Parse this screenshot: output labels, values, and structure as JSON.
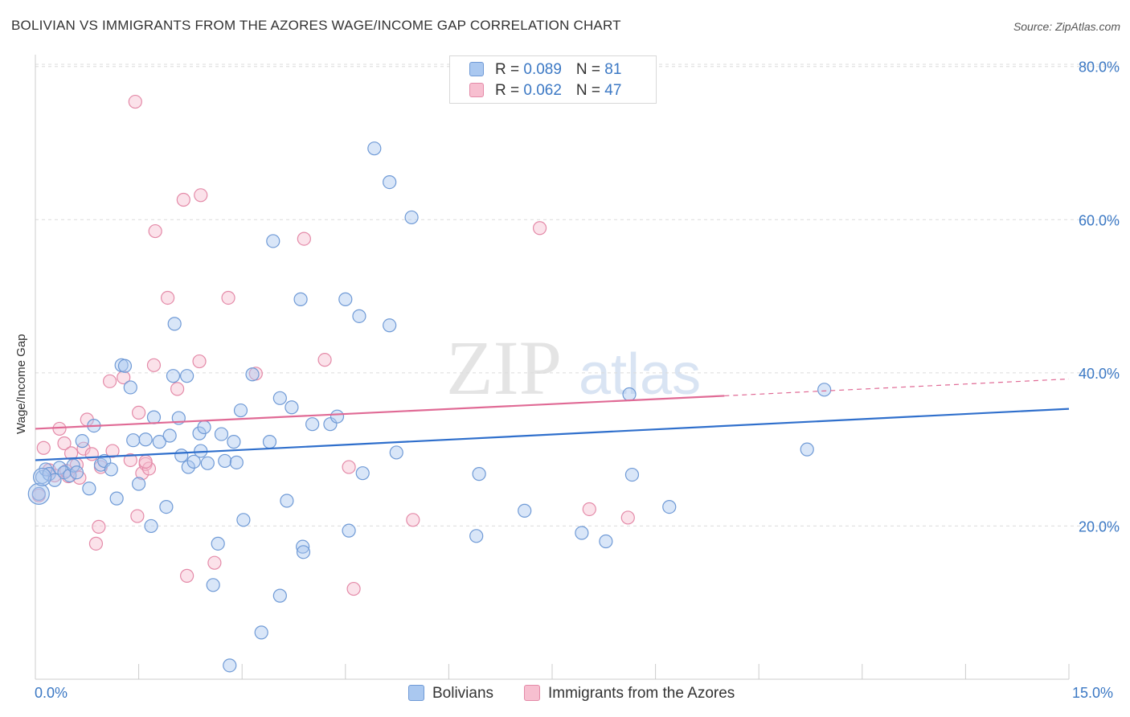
{
  "header": {
    "title": "BOLIVIAN VS IMMIGRANTS FROM THE AZORES WAGE/INCOME GAP CORRELATION CHART",
    "source": "Source: ZipAtlas.com"
  },
  "watermark": {
    "zip": "ZIP",
    "atlas": "atlas"
  },
  "legend_top": {
    "rows": [
      {
        "r_label": "R = ",
        "r_value": "0.089",
        "n_label": "N = ",
        "n_value": "81",
        "color": "#aac8f0"
      },
      {
        "r_label": "R = ",
        "r_value": "0.062",
        "n_label": "N = ",
        "n_value": "47",
        "color": "#f7bfd0"
      }
    ]
  },
  "legend_bottom": {
    "items": [
      {
        "label": "Bolivians",
        "color": "#aac8f0"
      },
      {
        "label": "Immigrants from the Azores",
        "color": "#f7bfd0"
      }
    ]
  },
  "colors": {
    "blue_fill": "#aac8f0",
    "blue_stroke": "#6f9ad6",
    "blue_line": "#2f6fcc",
    "pink_fill": "#f7bfd0",
    "pink_stroke": "#e48aa8",
    "pink_line": "#e06a95",
    "grid": "#dcdcdc",
    "tick_text": "#3b78c4"
  },
  "chart_data": {
    "type": "scatter",
    "title": "BOLIVIAN VS IMMIGRANTS FROM THE AZORES WAGE/INCOME GAP CORRELATION CHART",
    "ylabel": "Wage/Income Gap",
    "xlabel": "",
    "xlim": [
      0,
      15
    ],
    "ylim": [
      0,
      80
    ],
    "x_tick_labels": [
      "0.0%",
      "15.0%"
    ],
    "y_ticks": [
      20,
      40,
      60,
      80
    ],
    "y_tick_labels": [
      "20.0%",
      "40.0%",
      "60.0%",
      "80.0%"
    ],
    "grid": "horizontal dashed",
    "legend_position": "top-center",
    "series": [
      {
        "name": "Bolivians",
        "r": 0.089,
        "n": 81,
        "trend": {
          "x": [
            0,
            15
          ],
          "y": [
            28.6,
            35.3
          ]
        },
        "points": [
          [
            0.05,
            24.2
          ],
          [
            0.1,
            26.4
          ],
          [
            0.15,
            27.4
          ],
          [
            0.2,
            26.8
          ],
          [
            0.28,
            26.0
          ],
          [
            0.35,
            27.6
          ],
          [
            0.42,
            27.0
          ],
          [
            0.5,
            26.6
          ],
          [
            0.55,
            27.9
          ],
          [
            0.6,
            27.0
          ],
          [
            0.68,
            31.1
          ],
          [
            0.78,
            24.9
          ],
          [
            0.85,
            33.1
          ],
          [
            0.95,
            28.0
          ],
          [
            1.0,
            28.5
          ],
          [
            1.1,
            27.4
          ],
          [
            1.18,
            23.6
          ],
          [
            1.25,
            41.0
          ],
          [
            1.3,
            40.9
          ],
          [
            1.38,
            38.1
          ],
          [
            1.42,
            31.2
          ],
          [
            1.5,
            25.5
          ],
          [
            1.6,
            31.3
          ],
          [
            1.68,
            20.0
          ],
          [
            1.72,
            34.2
          ],
          [
            1.8,
            31.0
          ],
          [
            1.9,
            22.5
          ],
          [
            1.95,
            31.8
          ],
          [
            2.0,
            39.6
          ],
          [
            2.02,
            46.4
          ],
          [
            2.08,
            34.1
          ],
          [
            2.12,
            29.2
          ],
          [
            2.2,
            39.6
          ],
          [
            2.22,
            27.7
          ],
          [
            2.3,
            28.4
          ],
          [
            2.38,
            32.1
          ],
          [
            2.4,
            29.8
          ],
          [
            2.45,
            32.9
          ],
          [
            2.5,
            28.2
          ],
          [
            2.58,
            12.3
          ],
          [
            2.65,
            17.7
          ],
          [
            2.7,
            32.0
          ],
          [
            2.75,
            28.5
          ],
          [
            2.82,
            1.8
          ],
          [
            2.88,
            31.0
          ],
          [
            2.92,
            28.3
          ],
          [
            2.98,
            35.1
          ],
          [
            3.02,
            20.8
          ],
          [
            3.15,
            39.8
          ],
          [
            3.28,
            6.1
          ],
          [
            3.4,
            31.0
          ],
          [
            3.45,
            57.2
          ],
          [
            3.55,
            10.9
          ],
          [
            3.55,
            36.7
          ],
          [
            3.65,
            23.3
          ],
          [
            3.72,
            35.5
          ],
          [
            3.85,
            49.6
          ],
          [
            3.88,
            17.3
          ],
          [
            3.89,
            16.6
          ],
          [
            4.02,
            33.3
          ],
          [
            4.28,
            33.3
          ],
          [
            4.38,
            34.3
          ],
          [
            4.5,
            49.6
          ],
          [
            4.55,
            19.4
          ],
          [
            4.7,
            47.4
          ],
          [
            4.75,
            26.9
          ],
          [
            4.92,
            69.3
          ],
          [
            5.14,
            64.9
          ],
          [
            5.14,
            46.2
          ],
          [
            5.24,
            29.6
          ],
          [
            5.46,
            60.3
          ],
          [
            6.44,
            26.8
          ],
          [
            6.4,
            18.7
          ],
          [
            7.1,
            22.0
          ],
          [
            7.93,
            19.1
          ],
          [
            8.28,
            18.0
          ],
          [
            8.66,
            26.7
          ],
          [
            8.62,
            37.2
          ],
          [
            9.2,
            22.5
          ],
          [
            11.2,
            30.0
          ],
          [
            11.45,
            37.8
          ]
        ]
      },
      {
        "name": "Immigrants from the Azores",
        "r": 0.062,
        "n": 47,
        "trend": {
          "x": [
            0,
            10
          ],
          "y": [
            32.7,
            37.0
          ],
          "extends_dashed_to": {
            "x": 15,
            "y": 39.2
          }
        },
        "points": [
          [
            0.05,
            24.0
          ],
          [
            0.12,
            30.2
          ],
          [
            0.2,
            27.3
          ],
          [
            0.28,
            26.6
          ],
          [
            0.35,
            32.7
          ],
          [
            0.42,
            30.8
          ],
          [
            0.48,
            26.5
          ],
          [
            0.52,
            29.5
          ],
          [
            0.6,
            28.0
          ],
          [
            0.64,
            26.3
          ],
          [
            0.7,
            30.1
          ],
          [
            0.75,
            33.9
          ],
          [
            0.82,
            29.4
          ],
          [
            0.88,
            17.7
          ],
          [
            0.92,
            19.9
          ],
          [
            0.95,
            27.7
          ],
          [
            1.08,
            38.9
          ],
          [
            1.12,
            29.8
          ],
          [
            1.28,
            39.4
          ],
          [
            1.38,
            28.6
          ],
          [
            1.48,
            21.3
          ],
          [
            1.45,
            75.4
          ],
          [
            1.5,
            34.8
          ],
          [
            1.55,
            26.9
          ],
          [
            1.6,
            28.1
          ],
          [
            1.65,
            27.5
          ],
          [
            1.72,
            41.0
          ],
          [
            1.74,
            58.5
          ],
          [
            1.92,
            49.8
          ],
          [
            2.06,
            37.9
          ],
          [
            2.15,
            62.6
          ],
          [
            2.2,
            13.5
          ],
          [
            2.38,
            41.5
          ],
          [
            2.4,
            63.2
          ],
          [
            2.6,
            15.2
          ],
          [
            2.8,
            49.8
          ],
          [
            3.2,
            39.9
          ],
          [
            3.9,
            57.5
          ],
          [
            4.2,
            41.7
          ],
          [
            4.55,
            27.7
          ],
          [
            4.62,
            11.8
          ],
          [
            5.48,
            20.8
          ],
          [
            7.32,
            58.9
          ],
          [
            8.04,
            22.2
          ],
          [
            8.6,
            21.1
          ],
          [
            1.6,
            28.4
          ],
          [
            0.45,
            27.2
          ]
        ]
      }
    ]
  }
}
